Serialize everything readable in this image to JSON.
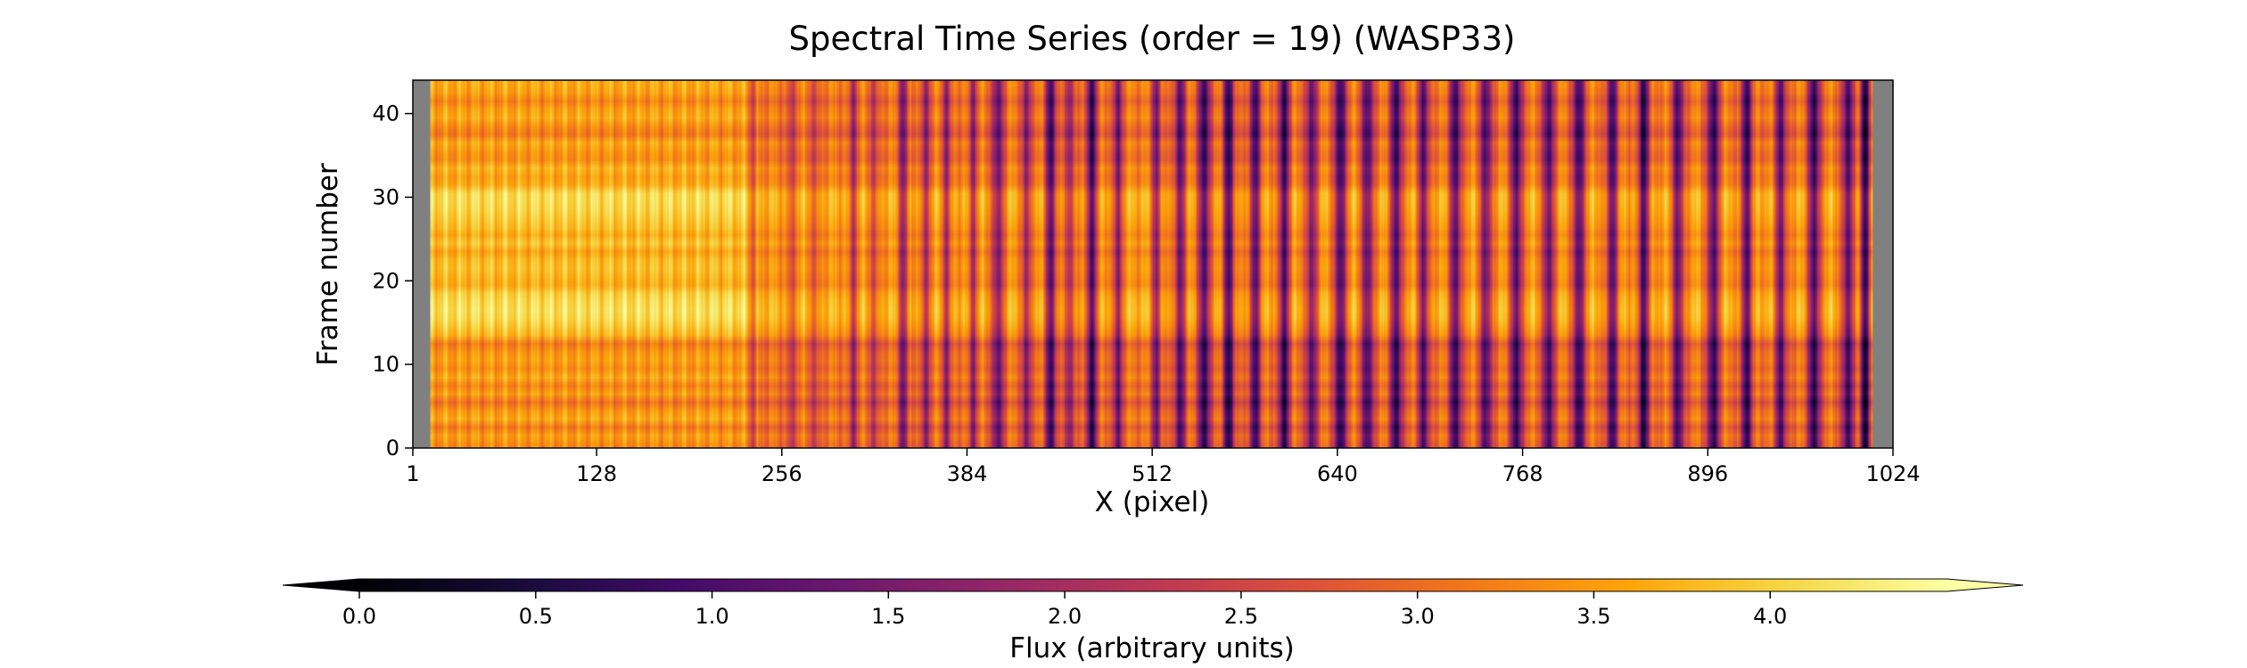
{
  "chart_data": {
    "type": "heatmap",
    "title": "Spectral Time Series (order = 19) (WASP33)",
    "xlabel": "X (pixel)",
    "ylabel": "Frame number",
    "xlim": [
      1,
      1024
    ],
    "ylim": [
      0,
      44
    ],
    "xticks": [
      1,
      128,
      256,
      384,
      512,
      640,
      768,
      896,
      1024
    ],
    "yticks": [
      0,
      10,
      20,
      30,
      40
    ],
    "colormap": "inferno",
    "colorbar": {
      "label": "Flux (arbitrary units)",
      "range": [
        0.0,
        4.5
      ],
      "ticks": [
        0.0,
        0.5,
        1.0,
        1.5,
        2.0,
        2.5,
        3.0,
        3.5,
        4.0
      ],
      "extend": "both",
      "placement": "bottom"
    },
    "masked_color": "#808080",
    "masked_x_ranges": [
      [
        1,
        12
      ],
      [
        1011,
        1024
      ]
    ],
    "baseline_flux": 3.3,
    "absorption_lines": [
      {
        "x": 236,
        "depth": 0.9,
        "width": 3
      },
      {
        "x": 262,
        "depth": 0.9,
        "width": 3
      },
      {
        "x": 279,
        "depth": 0.8,
        "width": 3
      },
      {
        "x": 305,
        "depth": 1.2,
        "width": 3
      },
      {
        "x": 320,
        "depth": 1.0,
        "width": 3
      },
      {
        "x": 340,
        "depth": 1.8,
        "width": 3
      },
      {
        "x": 355,
        "depth": 1.5,
        "width": 3
      },
      {
        "x": 370,
        "depth": 1.4,
        "width": 3
      },
      {
        "x": 388,
        "depth": 1.3,
        "width": 3
      },
      {
        "x": 405,
        "depth": 2.0,
        "width": 4
      },
      {
        "x": 425,
        "depth": 1.8,
        "width": 3
      },
      {
        "x": 442,
        "depth": 2.2,
        "width": 4
      },
      {
        "x": 455,
        "depth": 1.6,
        "width": 3
      },
      {
        "x": 470,
        "depth": 2.3,
        "width": 4
      },
      {
        "x": 488,
        "depth": 2.0,
        "width": 3
      },
      {
        "x": 515,
        "depth": 1.8,
        "width": 3
      },
      {
        "x": 531,
        "depth": 2.0,
        "width": 4
      },
      {
        "x": 548,
        "depth": 2.6,
        "width": 4
      },
      {
        "x": 565,
        "depth": 2.4,
        "width": 4
      },
      {
        "x": 583,
        "depth": 2.2,
        "width": 4
      },
      {
        "x": 603,
        "depth": 2.4,
        "width": 4
      },
      {
        "x": 622,
        "depth": 2.0,
        "width": 4
      },
      {
        "x": 642,
        "depth": 2.6,
        "width": 4
      },
      {
        "x": 661,
        "depth": 2.3,
        "width": 4
      },
      {
        "x": 681,
        "depth": 2.5,
        "width": 4
      },
      {
        "x": 700,
        "depth": 2.0,
        "width": 4
      },
      {
        "x": 722,
        "depth": 2.4,
        "width": 4
      },
      {
        "x": 743,
        "depth": 2.2,
        "width": 4
      },
      {
        "x": 764,
        "depth": 2.5,
        "width": 4
      },
      {
        "x": 786,
        "depth": 2.3,
        "width": 4
      },
      {
        "x": 807,
        "depth": 2.5,
        "width": 4
      },
      {
        "x": 830,
        "depth": 2.2,
        "width": 4
      },
      {
        "x": 852,
        "depth": 2.4,
        "width": 4
      },
      {
        "x": 876,
        "depth": 2.2,
        "width": 4
      },
      {
        "x": 900,
        "depth": 2.5,
        "width": 4
      },
      {
        "x": 923,
        "depth": 2.3,
        "width": 4
      },
      {
        "x": 947,
        "depth": 2.0,
        "width": 4
      },
      {
        "x": 970,
        "depth": 2.6,
        "width": 4
      },
      {
        "x": 993,
        "depth": 2.3,
        "width": 4
      },
      {
        "x": 1005,
        "depth": 2.8,
        "width": 3
      }
    ],
    "frame_brightness": [
      -0.3,
      -0.1,
      -0.5,
      0.0,
      -0.2,
      -0.6,
      -0.1,
      -0.4,
      0.0,
      -0.3,
      -0.1,
      -0.2,
      -0.5,
      0.1,
      0.3,
      0.45,
      0.5,
      0.45,
      0.35,
      0.0,
      0.1,
      0.2,
      0.15,
      -0.1,
      0.25,
      0.0,
      0.2,
      0.3,
      0.4,
      0.45,
      0.45,
      0.0,
      -0.1,
      0.1,
      -0.3,
      -0.2,
      0.0,
      -0.5,
      -0.3,
      0.0,
      -0.1,
      -0.4,
      -0.1,
      0.0
    ]
  }
}
